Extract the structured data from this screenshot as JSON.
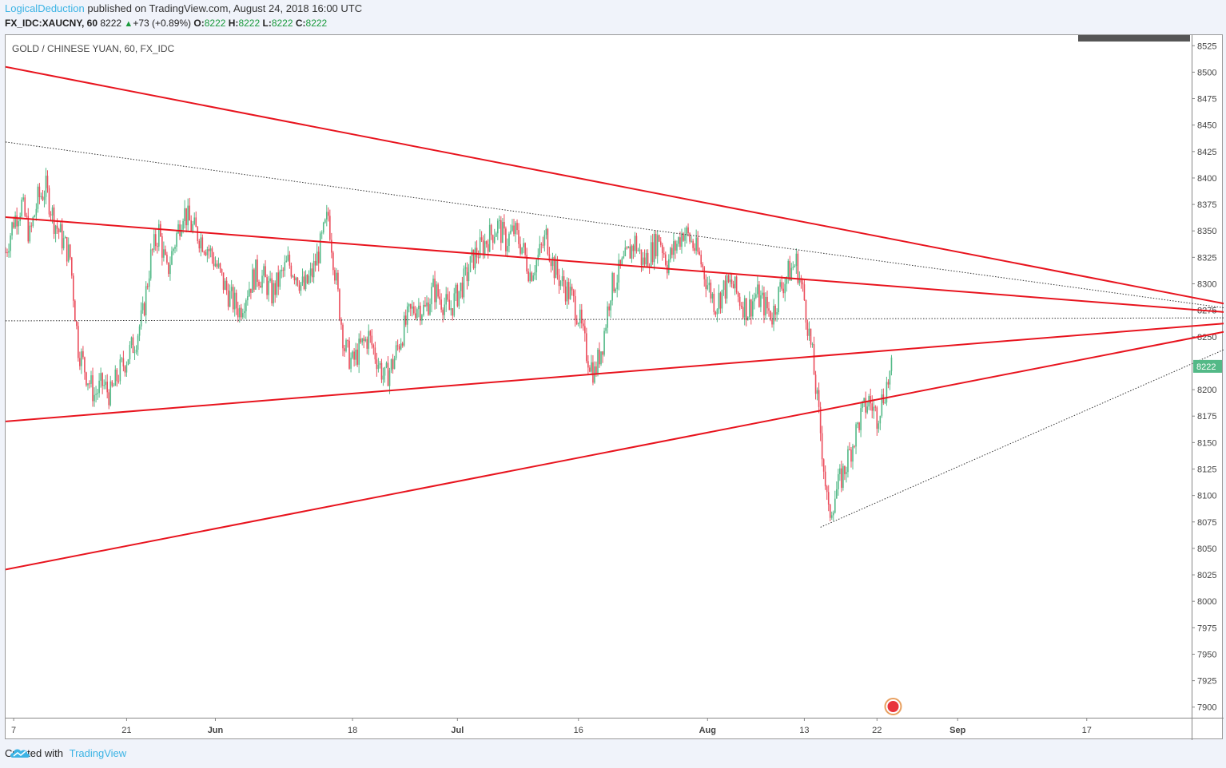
{
  "header": {
    "author": "LogicalDeduction",
    "published": " published on TradingView.com, August 24, 2018 16:00 UTC",
    "symbol": "FX_IDC:XAUCNY, 60",
    "last": "8222",
    "change": "+73 (+0.89%)",
    "o_label": "O:",
    "o": "8222",
    "h_label": "H:",
    "h": "8222",
    "l_label": "L:",
    "l": "8222",
    "c_label": "C:",
    "c": "8222"
  },
  "footer": {
    "created_with": "Created with",
    "brand": "TradingView"
  },
  "colors": {
    "up": "#53b987",
    "down": "#eb4d5c",
    "trend": "#e8141e",
    "vline": "#d400d4",
    "price_badge": "#53b987"
  },
  "chart_data": {
    "type": "candlestick",
    "title": "GOLD / CHINESE YUAN, 60, FX_IDC",
    "ylim": [
      7890,
      8535
    ],
    "yticks": [
      8525,
      8500,
      8475,
      8450,
      8425,
      8400,
      8375,
      8350,
      8325,
      8300,
      8275,
      8250,
      8200,
      8175,
      8150,
      8125,
      8100,
      8075,
      8050,
      8025,
      8000,
      7975,
      7950,
      7925,
      7900
    ],
    "xlim": [
      "2018-05-06",
      "2018-09-30"
    ],
    "xticks": [
      {
        "date": "2018-05-07",
        "label": "7"
      },
      {
        "date": "2018-05-21",
        "label": "21"
      },
      {
        "date": "2018-06-01",
        "label": "Jun"
      },
      {
        "date": "2018-06-18",
        "label": "18"
      },
      {
        "date": "2018-07-01",
        "label": "Jul"
      },
      {
        "date": "2018-07-16",
        "label": "16"
      },
      {
        "date": "2018-08-01",
        "label": "Aug"
      },
      {
        "date": "2018-08-13",
        "label": "13"
      },
      {
        "date": "2018-08-22",
        "label": "22"
      },
      {
        "date": "2018-09-01",
        "label": "Sep"
      },
      {
        "date": "2018-09-17",
        "label": "17"
      }
    ],
    "last_price": 8222,
    "price_path": [
      [
        "2018-05-06",
        8330
      ],
      [
        "2018-05-07",
        8360
      ],
      [
        "2018-05-08",
        8375
      ],
      [
        "2018-05-09",
        8345
      ],
      [
        "2018-05-10",
        8380
      ],
      [
        "2018-05-11",
        8390
      ],
      [
        "2018-05-12",
        8360
      ],
      [
        "2018-05-14",
        8325
      ],
      [
        "2018-05-15",
        8240
      ],
      [
        "2018-05-16",
        8215
      ],
      [
        "2018-05-17",
        8195
      ],
      [
        "2018-05-18",
        8205
      ],
      [
        "2018-05-19",
        8195
      ],
      [
        "2018-05-20",
        8215
      ],
      [
        "2018-05-21",
        8230
      ],
      [
        "2018-05-22",
        8245
      ],
      [
        "2018-05-23",
        8270
      ],
      [
        "2018-05-24",
        8325
      ],
      [
        "2018-05-25",
        8350
      ],
      [
        "2018-05-26",
        8310
      ],
      [
        "2018-05-27",
        8340
      ],
      [
        "2018-05-28",
        8370
      ],
      [
        "2018-05-29",
        8355
      ],
      [
        "2018-05-30",
        8345
      ],
      [
        "2018-05-31",
        8335
      ],
      [
        "2018-06-01",
        8320
      ],
      [
        "2018-06-02",
        8300
      ],
      [
        "2018-06-03",
        8285
      ],
      [
        "2018-06-04",
        8275
      ],
      [
        "2018-06-05",
        8295
      ],
      [
        "2018-06-06",
        8310
      ],
      [
        "2018-06-07",
        8305
      ],
      [
        "2018-06-08",
        8290
      ],
      [
        "2018-06-09",
        8305
      ],
      [
        "2018-06-10",
        8320
      ],
      [
        "2018-06-11",
        8310
      ],
      [
        "2018-06-12",
        8295
      ],
      [
        "2018-06-13",
        8310
      ],
      [
        "2018-06-14",
        8335
      ],
      [
        "2018-06-15",
        8365
      ],
      [
        "2018-06-16",
        8300
      ],
      [
        "2018-06-17",
        8240
      ],
      [
        "2018-06-18",
        8225
      ],
      [
        "2018-06-19",
        8240
      ],
      [
        "2018-06-20",
        8250
      ],
      [
        "2018-06-21",
        8230
      ],
      [
        "2018-06-22",
        8210
      ],
      [
        "2018-06-23",
        8225
      ],
      [
        "2018-06-24",
        8250
      ],
      [
        "2018-06-25",
        8270
      ],
      [
        "2018-06-26",
        8280
      ],
      [
        "2018-06-27",
        8275
      ],
      [
        "2018-06-28",
        8295
      ],
      [
        "2018-06-29",
        8285
      ],
      [
        "2018-06-30",
        8275
      ],
      [
        "2018-07-01",
        8290
      ],
      [
        "2018-07-02",
        8305
      ],
      [
        "2018-07-03",
        8325
      ],
      [
        "2018-07-04",
        8335
      ],
      [
        "2018-07-05",
        8345
      ],
      [
        "2018-07-06",
        8355
      ],
      [
        "2018-07-07",
        8340
      ],
      [
        "2018-07-08",
        8350
      ],
      [
        "2018-07-09",
        8335
      ],
      [
        "2018-07-10",
        8310
      ],
      [
        "2018-07-11",
        8325
      ],
      [
        "2018-07-12",
        8345
      ],
      [
        "2018-07-13",
        8315
      ],
      [
        "2018-07-14",
        8300
      ],
      [
        "2018-07-15",
        8290
      ],
      [
        "2018-07-16",
        8270
      ],
      [
        "2018-07-17",
        8235
      ],
      [
        "2018-07-18",
        8215
      ],
      [
        "2018-07-19",
        8245
      ],
      [
        "2018-07-20",
        8295
      ],
      [
        "2018-07-21",
        8310
      ],
      [
        "2018-07-22",
        8325
      ],
      [
        "2018-07-23",
        8340
      ],
      [
        "2018-07-24",
        8320
      ],
      [
        "2018-07-25",
        8330
      ],
      [
        "2018-07-26",
        8345
      ],
      [
        "2018-07-27",
        8320
      ],
      [
        "2018-07-28",
        8335
      ],
      [
        "2018-07-29",
        8350
      ],
      [
        "2018-07-30",
        8340
      ],
      [
        "2018-07-31",
        8325
      ],
      [
        "2018-08-01",
        8300
      ],
      [
        "2018-08-02",
        8280
      ],
      [
        "2018-08-03",
        8295
      ],
      [
        "2018-08-04",
        8300
      ],
      [
        "2018-08-05",
        8285
      ],
      [
        "2018-08-06",
        8275
      ],
      [
        "2018-08-07",
        8290
      ],
      [
        "2018-08-08",
        8280
      ],
      [
        "2018-08-09",
        8270
      ],
      [
        "2018-08-10",
        8295
      ],
      [
        "2018-08-11",
        8310
      ],
      [
        "2018-08-12",
        8320
      ],
      [
        "2018-08-13",
        8285
      ],
      [
        "2018-08-14",
        8230
      ],
      [
        "2018-08-15",
        8160
      ],
      [
        "2018-08-16",
        8080
      ],
      [
        "2018-08-17",
        8105
      ],
      [
        "2018-08-18",
        8125
      ],
      [
        "2018-08-19",
        8150
      ],
      [
        "2018-08-20",
        8175
      ],
      [
        "2018-08-21",
        8190
      ],
      [
        "2018-08-22",
        8175
      ],
      [
        "2018-08-23",
        8200
      ],
      [
        "2018-08-24",
        8222
      ]
    ],
    "trendlines": [
      {
        "style": "solid",
        "from": [
          "2018-05-06",
          8505
        ],
        "to": [
          "2018-10-13",
          8268
        ]
      },
      {
        "style": "solid",
        "from": [
          "2018-05-06",
          8363
        ],
        "to": [
          "2018-10-13",
          8268
        ]
      },
      {
        "style": "solid",
        "from": [
          "2018-05-06",
          8170
        ],
        "to": [
          "2018-10-13",
          8268
        ]
      },
      {
        "style": "solid",
        "from": [
          "2018-05-06",
          8030
        ],
        "to": [
          "2018-10-13",
          8268
        ]
      },
      {
        "style": "dotted",
        "from": [
          "2018-05-06",
          8434
        ],
        "to": [
          "2018-10-13",
          8268
        ]
      },
      {
        "style": "dotted",
        "from": [
          "2018-05-06",
          8265
        ],
        "to": [
          "2018-10-13",
          8268
        ]
      },
      {
        "style": "dotted",
        "from": [
          "2018-08-15",
          8070
        ],
        "to": [
          "2018-10-13",
          8268
        ]
      }
    ],
    "vertical_line": "2018-10-13"
  }
}
